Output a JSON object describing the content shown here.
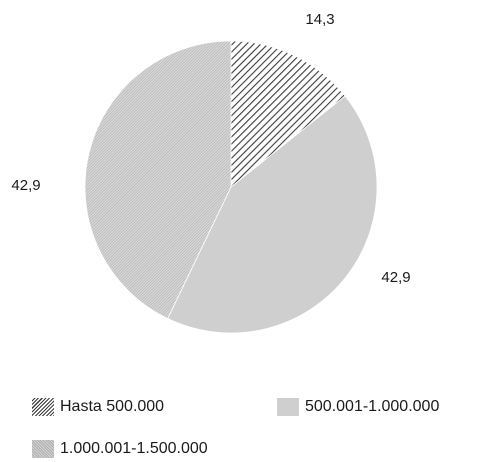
{
  "chart_data": {
    "type": "pie",
    "categories": [
      "Hasta 500.000",
      "500.001-1.000.000",
      "1.000.001-1.500.000"
    ],
    "values": [
      14.3,
      42.9,
      42.9
    ],
    "value_labels": [
      "14,3",
      "42,9",
      "42,9"
    ],
    "legend_placement": "bottom",
    "start_angle": "top",
    "direction": "clockwise",
    "colors": [
      "#3a3a3a",
      "#cfcfcf",
      "#bdbdbd"
    ]
  }
}
